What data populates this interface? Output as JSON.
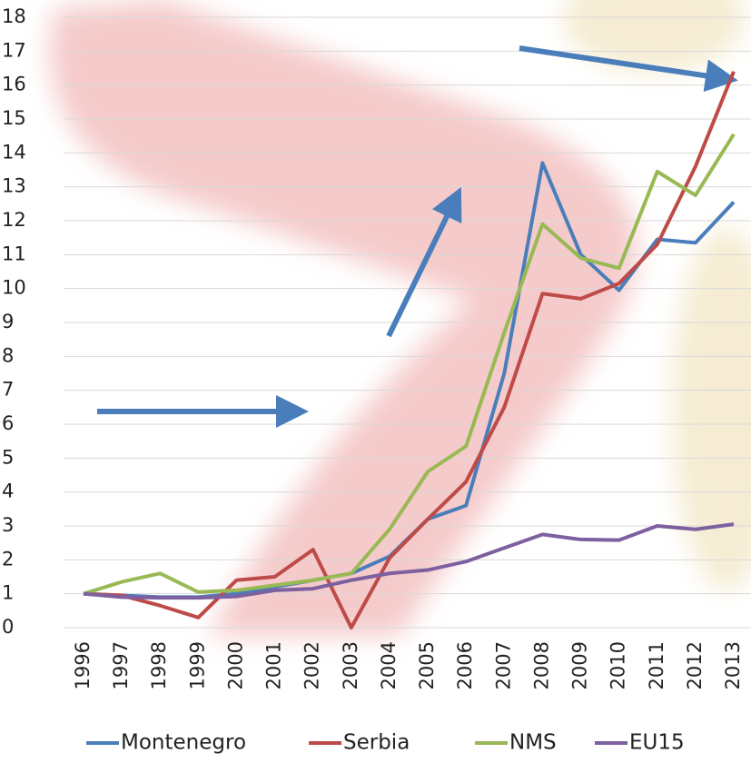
{
  "chart_data": {
    "type": "line",
    "x": [
      "1996",
      "1997",
      "1998",
      "1999",
      "2000",
      "2001",
      "2002",
      "2003",
      "2004",
      "2005",
      "2006",
      "2007",
      "2008",
      "2009",
      "2010",
      "2011",
      "2012",
      "2013"
    ],
    "series": [
      {
        "name": "Montenegro",
        "color": "#4a7ebb",
        "values": [
          1,
          0.95,
          0.9,
          0.9,
          1.0,
          1.2,
          1.4,
          1.6,
          2.1,
          3.2,
          3.6,
          7.5,
          13.7,
          11.0,
          9.95,
          11.45,
          11.35,
          12.55
        ]
      },
      {
        "name": "Serbia",
        "color": "#be4b48",
        "values": [
          1,
          0.95,
          0.65,
          0.3,
          1.4,
          1.5,
          2.3,
          0,
          2.05,
          3.2,
          4.3,
          6.5,
          9.85,
          9.7,
          10.15,
          11.3,
          13.6,
          16.4
        ]
      },
      {
        "name": "NMS",
        "color": "#98b954",
        "values": [
          1,
          1.35,
          1.6,
          1.05,
          1.1,
          1.25,
          1.4,
          1.6,
          2.9,
          4.6,
          5.35,
          8.7,
          11.9,
          10.9,
          10.6,
          13.45,
          12.75,
          14.55
        ]
      },
      {
        "name": "EU15",
        "color": "#7d60a0",
        "values": [
          1,
          0.9,
          0.88,
          0.88,
          0.92,
          1.1,
          1.15,
          1.4,
          1.6,
          1.7,
          1.95,
          2.35,
          2.75,
          2.6,
          2.58,
          3.0,
          2.9,
          3.05
        ]
      }
    ],
    "ylim": [
      0,
      18
    ],
    "yticks": [
      0,
      1,
      2,
      3,
      4,
      5,
      6,
      7,
      8,
      9,
      10,
      11,
      12,
      13,
      14,
      15,
      16,
      17,
      18
    ],
    "grid": true,
    "legend": "bottom"
  }
}
